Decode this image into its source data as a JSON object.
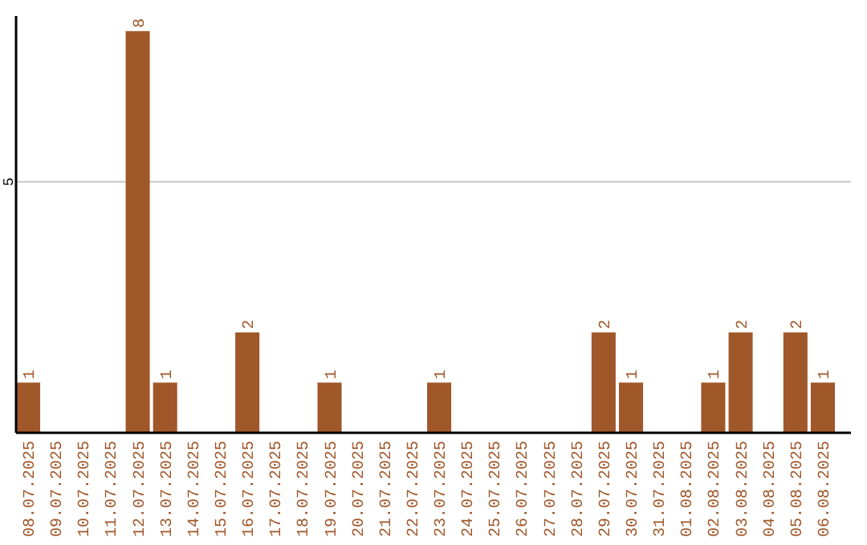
{
  "chart_data": {
    "type": "bar",
    "categories": [
      "08.07.2025",
      "09.07.2025",
      "10.07.2025",
      "11.07.2025",
      "12.07.2025",
      "13.07.2025",
      "14.07.2025",
      "15.07.2025",
      "16.07.2025",
      "17.07.2025",
      "18.07.2025",
      "19.07.2025",
      "20.07.2025",
      "21.07.2025",
      "22.07.2025",
      "23.07.2025",
      "24.07.2025",
      "25.07.2025",
      "26.07.2025",
      "27.07.2025",
      "28.07.2025",
      "29.07.2025",
      "30.07.2025",
      "31.07.2025",
      "01.08.2025",
      "02.08.2025",
      "03.08.2025",
      "04.08.2025",
      "05.08.2025",
      "06.08.2025"
    ],
    "values": [
      1,
      0,
      0,
      0,
      8,
      1,
      0,
      0,
      2,
      0,
      0,
      1,
      0,
      0,
      0,
      1,
      0,
      0,
      0,
      0,
      0,
      2,
      1,
      0,
      0,
      1,
      2,
      0,
      2,
      1
    ],
    "value_labels": [
      "1",
      null,
      null,
      null,
      "8",
      "1",
      null,
      null,
      "2",
      null,
      null,
      "1",
      null,
      null,
      null,
      "1",
      null,
      null,
      null,
      null,
      null,
      "2",
      "1",
      null,
      null,
      "1",
      "2",
      null,
      "2",
      "1"
    ],
    "color": "#a0572a",
    "ylim": [
      0,
      8.3
    ],
    "yticks": [
      5
    ],
    "grid": "y"
  }
}
